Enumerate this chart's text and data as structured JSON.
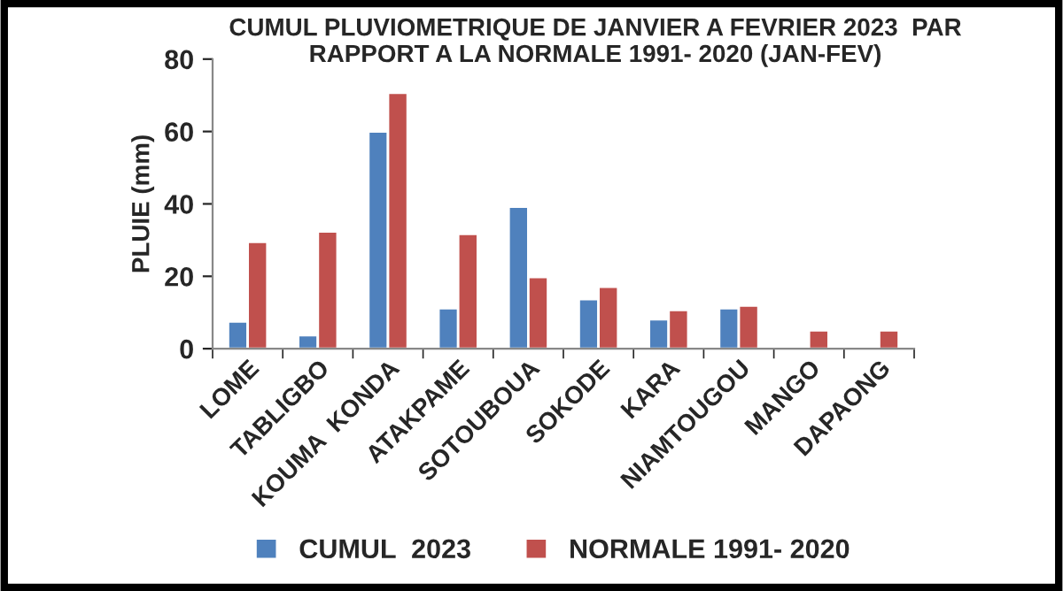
{
  "chart_data": {
    "type": "bar",
    "title": "CUMUL PLUVIOMETRIQUE DE JANVIER A FEVRIER 2023  PAR\nRAPPORT A LA NORMALE 1991- 2020 (JAN-FEV)",
    "ylabel": "PLUIE (mm)",
    "categories": [
      "LOME",
      "TABLIGBO",
      "KOUMA  KONDA",
      "ATAKPAME",
      "SOTOUBOUA",
      "SOKODE",
      "KARA",
      "NIAMTOUGOU",
      "MANGO",
      "DAPAONG"
    ],
    "series": [
      {
        "name": "CUMUL  2023",
        "color": "#4f81bd",
        "values": [
          7.5,
          3.7,
          60,
          11.2,
          39.2,
          13.7,
          8.1,
          11.2,
          null,
          null
        ]
      },
      {
        "name": "NORMALE 1991- 2020",
        "color": "#c0504d",
        "values": [
          29.5,
          32.4,
          70.7,
          31.7,
          19.8,
          17.1,
          10.7,
          11.9,
          5.1,
          5.1
        ]
      }
    ],
    "ylim": [
      0,
      80
    ],
    "yticks": [
      0,
      20,
      40,
      60,
      80
    ],
    "grid": false,
    "legend": "bottom"
  }
}
